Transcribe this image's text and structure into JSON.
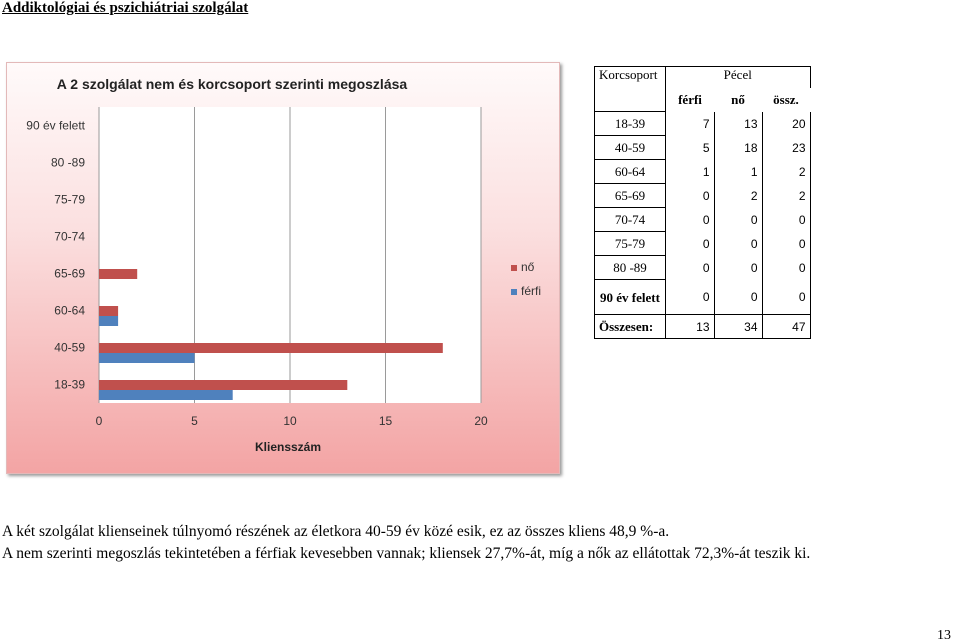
{
  "page": {
    "heading": "Addiktológiai és pszichiátriai szolgálat",
    "paragraph1": "A két szolgálat klienseinek túlnyomó részének az életkora 40-59 év közé esik, ez az összes kliens 48,9 %-a.",
    "paragraph2": "A nem szerinti megoszlás tekintetében a férfiak kevesebben vannak; kliensek 27,7%-át, míg a nők az ellátottak 72,3%-át teszik ki.",
    "page_number": "13"
  },
  "chart_data": {
    "type": "bar",
    "orientation": "horizontal",
    "title": "A 2 szolgálat nem és korcsoport szerinti megoszlása",
    "xlabel": "Kliensszám",
    "ylabel": "",
    "categories": [
      "18-39",
      "40-59",
      "60-64",
      "65-69",
      "70-74",
      "75-79",
      "80 -89",
      "90 év felett"
    ],
    "series": [
      {
        "name": "férfi",
        "values": [
          7,
          5,
          1,
          0,
          0,
          0,
          0,
          0
        ],
        "color": "#4f81bd"
      },
      {
        "name": "nő",
        "values": [
          13,
          18,
          1,
          2,
          0,
          0,
          0,
          0
        ],
        "color": "#c0504d"
      }
    ],
    "xlim": [
      0,
      20
    ],
    "xticks": [
      "0",
      "5",
      "10",
      "15",
      "20"
    ],
    "legend_order": [
      "nő",
      "férfi"
    ],
    "legend_position": "right",
    "grid": true
  },
  "table": {
    "header_label": "Korcsoport",
    "group_label": "Pécel",
    "columns": [
      "férfi",
      "nő",
      "össz."
    ],
    "rows": [
      {
        "label": "18-39",
        "values": [
          "7",
          "13",
          "20"
        ]
      },
      {
        "label": "40-59",
        "values": [
          "5",
          "18",
          "23"
        ]
      },
      {
        "label": "60-64",
        "values": [
          "1",
          "1",
          "2"
        ]
      },
      {
        "label": "65-69",
        "values": [
          "0",
          "2",
          "2"
        ]
      },
      {
        "label": "70-74",
        "values": [
          "0",
          "0",
          "0"
        ]
      },
      {
        "label": "75-79",
        "values": [
          "0",
          "0",
          "0"
        ]
      },
      {
        "label": "80 -89",
        "values": [
          "0",
          "0",
          "0"
        ]
      },
      {
        "label": "90 év felett",
        "values": [
          "0",
          "0",
          "0"
        ]
      }
    ],
    "total_label": "Összesen:",
    "total_values": [
      "13",
      "34",
      "47"
    ]
  }
}
